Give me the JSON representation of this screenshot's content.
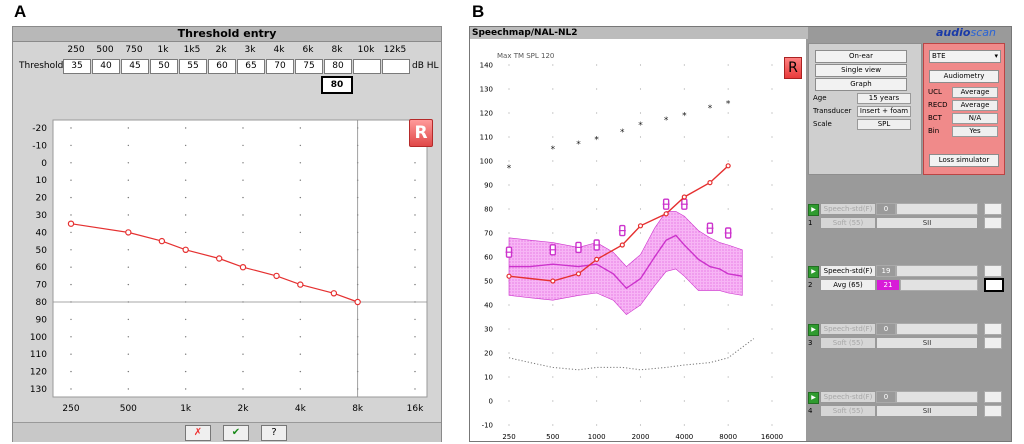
{
  "labels": {
    "a": "A",
    "b": "B"
  },
  "threshold_entry": {
    "title": "Threshold entry",
    "row_label": "Threshold",
    "unit": "dB HL",
    "frequencies": [
      "250",
      "500",
      "750",
      "1k",
      "1k5",
      "2k",
      "3k",
      "4k",
      "6k",
      "8k",
      "10k",
      "12k5"
    ],
    "values": [
      "35",
      "40",
      "45",
      "50",
      "55",
      "60",
      "65",
      "70",
      "75",
      "80",
      "",
      ""
    ],
    "selected_value": "80",
    "buttons": {
      "cancel": "✗",
      "ok": "✔",
      "help": "?"
    }
  },
  "audiogram_a": {
    "ear_badge": "R",
    "y_ticks": [
      "-20",
      "-10",
      "0",
      "10",
      "20",
      "30",
      "40",
      "50",
      "60",
      "70",
      "80",
      "90",
      "100",
      "110",
      "120",
      "130"
    ],
    "x_ticks": [
      "250",
      "500",
      "1k",
      "2k",
      "4k",
      "8k",
      "16k"
    ]
  },
  "chart_data": [
    {
      "type": "line",
      "title": "",
      "xlabel": "",
      "ylabel": "",
      "x_scale": "log",
      "xlim": [
        250,
        16000
      ],
      "ylim": [
        -20,
        130
      ],
      "y_reversed": true,
      "series": [
        {
          "x": [
            250,
            500,
            750,
            1000,
            1500,
            2000,
            3000,
            4000,
            6000,
            8000
          ],
          "values": [
            35,
            40,
            45,
            50,
            55,
            60,
            65,
            70,
            75,
            80
          ]
        }
      ],
      "color": "#e53030"
    },
    {
      "type": "line",
      "title": "",
      "xlabel": "",
      "ylabel": "",
      "x_scale": "log",
      "xlim": [
        200,
        16000
      ],
      "ylim": [
        -10,
        140
      ],
      "x_ticks": [
        "250",
        "500",
        "1000",
        "2000",
        "4000",
        "8000",
        "16000"
      ],
      "y_ticks": [
        "-10",
        "0",
        "10",
        "20",
        "30",
        "40",
        "50",
        "60",
        "70",
        "80",
        "90",
        "100",
        "110",
        "120",
        "130",
        "140"
      ],
      "series": [
        {
          "x": [
            250,
            500,
            750,
            1000,
            1500,
            2000,
            3000,
            4000,
            6000,
            8000
          ],
          "values": [
            52,
            50,
            53,
            59,
            65,
            73,
            78,
            85,
            91,
            98
          ]
        },
        {
          "x": [
            250,
            500,
            750,
            1000,
            1500,
            2000,
            3000,
            4000,
            6000,
            8000
          ],
          "values": [
            97,
            105,
            107,
            109,
            112,
            115,
            117,
            119,
            122,
            124
          ]
        },
        {
          "x": [
            250,
            350,
            500,
            750,
            1000,
            1300,
            1600,
            2000,
            2500,
            3000,
            3500,
            4000,
            5000,
            6000,
            7000,
            8000,
            10000
          ],
          "values": [
            56,
            56,
            57,
            56,
            57,
            53,
            47,
            51,
            60,
            67,
            69,
            65,
            59,
            56,
            55,
            53,
            52
          ]
        },
        {
          "x": [
            250,
            350,
            500,
            750,
            1000,
            1300,
            1600,
            2000,
            2500,
            3000,
            3500,
            4000,
            5000,
            6000,
            7000,
            8000,
            10000
          ],
          "values": [
            68,
            67,
            66,
            64,
            66,
            62,
            56,
            61,
            72,
            79,
            79,
            77,
            71,
            68,
            66,
            65,
            63
          ]
        },
        {
          "x": [
            250,
            350,
            500,
            750,
            1000,
            1300,
            1600,
            2000,
            2500,
            3000,
            3500,
            4000,
            5000,
            6000,
            7000,
            8000,
            10000
          ],
          "values": [
            44,
            43,
            42,
            44,
            45,
            42,
            36,
            40,
            48,
            54,
            55,
            52,
            46,
            46,
            46,
            45,
            44
          ]
        },
        {
          "x": [
            250,
            500,
            750,
            1000,
            1500,
            3000,
            4000,
            6000,
            8000
          ],
          "values": [
            62,
            63,
            64,
            65,
            71,
            82,
            82,
            72,
            70
          ]
        },
        {
          "x": [
            250,
            350,
            500,
            750,
            1000,
            1500,
            2000,
            3000,
            4000,
            6000,
            8000,
            12000
          ],
          "values": [
            18,
            16,
            14,
            13,
            14,
            14,
            13,
            14,
            15,
            16,
            18,
            26
          ]
        }
      ],
      "colors": {
        "prescription": "#e53030",
        "ucl": "#222222",
        "speech_band": "#f7b5f5",
        "speech_ltass": "#cc33cc",
        "target": "#cc33cc",
        "threshold_noise": "#777777"
      }
    }
  ],
  "speechmap": {
    "title": "Speechmap/NAL-NL2",
    "max_tm": "Max TM SPL 120",
    "ear_badge": "R",
    "logo_main": "audio",
    "logo_sub": "scan",
    "buttons": {
      "on_ear": "On-ear",
      "single_view": "Single view",
      "graph": "Graph"
    },
    "fields": [
      {
        "key": "Age",
        "value": "15 years"
      },
      {
        "key": "Transducer",
        "value": "Insert + foam"
      },
      {
        "key": "Scale",
        "value": "SPL"
      }
    ],
    "right_panel": {
      "style": "BTE",
      "audiometry": "Audiometry",
      "fields": [
        {
          "key": "UCL",
          "value": "Average"
        },
        {
          "key": "RECD",
          "value": "Average"
        },
        {
          "key": "BCT",
          "value": "N/A"
        },
        {
          "key": "Bin",
          "value": "Yes"
        }
      ],
      "loss_sim": "Loss simulator"
    },
    "signals": [
      {
        "num": "1",
        "signal": "Speech-std(F)",
        "level": "Soft (55)",
        "count": "0",
        "sii": "SII",
        "active": false
      },
      {
        "num": "2",
        "signal": "Speech-std(F)",
        "level": "Avg (65)",
        "count": "19",
        "sii": "21",
        "active": true
      },
      {
        "num": "3",
        "signal": "Speech-std(F)",
        "level": "Soft (55)",
        "count": "0",
        "sii": "SII",
        "active": false
      },
      {
        "num": "4",
        "signal": "Speech-std(F)",
        "level": "Soft (55)",
        "count": "0",
        "sii": "SII",
        "active": false
      }
    ]
  }
}
